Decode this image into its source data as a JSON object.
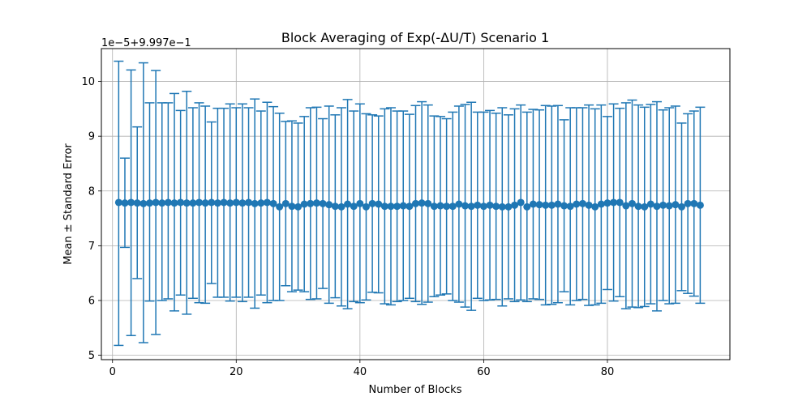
{
  "chart_data": {
    "type": "errorbar",
    "title": "Block Averaging of Exp(-ΔU/T) Scenario 1",
    "xlabel": "Number of Blocks",
    "ylabel": "Mean ± Standard Error",
    "y_offset_label": "1e−5+9.997e−1",
    "xlim": [
      -1.8,
      99.8
    ],
    "ylim": [
      4.92,
      10.6
    ],
    "xticks": [
      0,
      20,
      40,
      60,
      80
    ],
    "yticks": [
      5,
      6,
      7,
      8,
      9,
      10
    ],
    "grid": true,
    "color": "#1f77b4",
    "x": [
      1,
      2,
      3,
      4,
      5,
      6,
      7,
      8,
      9,
      10,
      11,
      12,
      13,
      14,
      15,
      16,
      17,
      18,
      19,
      20,
      21,
      22,
      23,
      24,
      25,
      26,
      27,
      28,
      29,
      30,
      31,
      32,
      33,
      34,
      35,
      36,
      37,
      38,
      39,
      40,
      41,
      42,
      43,
      44,
      45,
      46,
      47,
      48,
      49,
      50,
      51,
      52,
      53,
      54,
      55,
      56,
      57,
      58,
      59,
      60,
      61,
      62,
      63,
      64,
      65,
      66,
      67,
      68,
      69,
      70,
      71,
      72,
      73,
      74,
      75,
      76,
      77,
      78,
      79,
      80,
      81,
      82,
      83,
      84,
      85,
      86,
      87,
      88,
      89,
      90,
      91,
      92,
      93,
      94,
      95
    ],
    "mean": [
      7.79,
      7.78,
      7.79,
      7.78,
      7.77,
      7.78,
      7.79,
      7.78,
      7.79,
      7.78,
      7.79,
      7.78,
      7.78,
      7.79,
      7.78,
      7.79,
      7.78,
      7.79,
      7.78,
      7.79,
      7.78,
      7.79,
      7.77,
      7.78,
      7.79,
      7.77,
      7.71,
      7.77,
      7.72,
      7.71,
      7.76,
      7.77,
      7.78,
      7.77,
      7.75,
      7.72,
      7.71,
      7.76,
      7.72,
      7.77,
      7.71,
      7.77,
      7.76,
      7.72,
      7.72,
      7.72,
      7.73,
      7.72,
      7.77,
      7.78,
      7.77,
      7.72,
      7.73,
      7.72,
      7.72,
      7.76,
      7.73,
      7.72,
      7.74,
      7.72,
      7.74,
      7.72,
      7.71,
      7.71,
      7.74,
      7.79,
      7.71,
      7.76,
      7.75,
      7.74,
      7.74,
      7.76,
      7.73,
      7.72,
      7.76,
      7.77,
      7.74,
      7.71,
      7.76,
      7.78,
      7.79,
      7.79,
      7.73,
      7.77,
      7.72,
      7.71,
      7.76,
      7.72,
      7.74,
      7.73,
      7.75,
      7.71,
      7.77,
      7.77,
      7.74
    ],
    "lower": [
      5.18,
      6.97,
      5.36,
      6.4,
      5.23,
      5.99,
      5.38,
      6.0,
      6.03,
      5.81,
      6.1,
      5.75,
      6.04,
      5.96,
      5.95,
      6.31,
      6.06,
      6.06,
      5.99,
      6.06,
      5.98,
      6.06,
      5.86,
      6.1,
      5.96,
      6.0,
      6.0,
      6.27,
      6.16,
      6.19,
      6.16,
      6.02,
      6.03,
      6.22,
      5.95,
      6.05,
      5.9,
      5.85,
      5.98,
      5.96,
      6.01,
      6.15,
      6.14,
      5.94,
      5.92,
      5.98,
      6.0,
      6.04,
      5.98,
      5.93,
      5.97,
      6.07,
      6.1,
      6.12,
      6.0,
      5.97,
      5.88,
      5.82,
      6.04,
      6.0,
      6.01,
      6.02,
      5.9,
      6.03,
      5.98,
      6.01,
      5.98,
      6.03,
      6.02,
      5.92,
      5.93,
      5.96,
      6.16,
      5.92,
      6.0,
      6.02,
      5.91,
      5.92,
      5.95,
      6.2,
      5.99,
      6.07,
      5.85,
      5.88,
      5.87,
      5.89,
      5.94,
      5.81,
      6.0,
      5.94,
      5.95,
      6.18,
      6.13,
      6.08,
      5.95
    ],
    "upper": [
      10.37,
      8.6,
      10.21,
      9.17,
      10.34,
      9.61,
      10.2,
      9.61,
      9.61,
      9.78,
      9.47,
      9.82,
      9.52,
      9.61,
      9.55,
      9.26,
      9.51,
      9.51,
      9.59,
      9.52,
      9.59,
      9.52,
      9.68,
      9.46,
      9.62,
      9.54,
      9.42,
      9.27,
      9.28,
      9.24,
      9.36,
      9.52,
      9.53,
      9.32,
      9.55,
      9.39,
      9.52,
      9.67,
      9.46,
      9.59,
      9.41,
      9.39,
      9.37,
      9.5,
      9.52,
      9.46,
      9.46,
      9.4,
      9.56,
      9.63,
      9.57,
      9.37,
      9.36,
      9.32,
      9.44,
      9.55,
      9.58,
      9.62,
      9.44,
      9.44,
      9.47,
      9.42,
      9.52,
      9.39,
      9.5,
      9.57,
      9.44,
      9.49,
      9.48,
      9.56,
      9.55,
      9.56,
      9.3,
      9.52,
      9.52,
      9.52,
      9.57,
      9.5,
      9.57,
      9.36,
      9.59,
      9.51,
      9.61,
      9.66,
      9.57,
      9.53,
      9.58,
      9.63,
      9.48,
      9.52,
      9.55,
      9.24,
      9.41,
      9.46,
      9.53
    ]
  }
}
